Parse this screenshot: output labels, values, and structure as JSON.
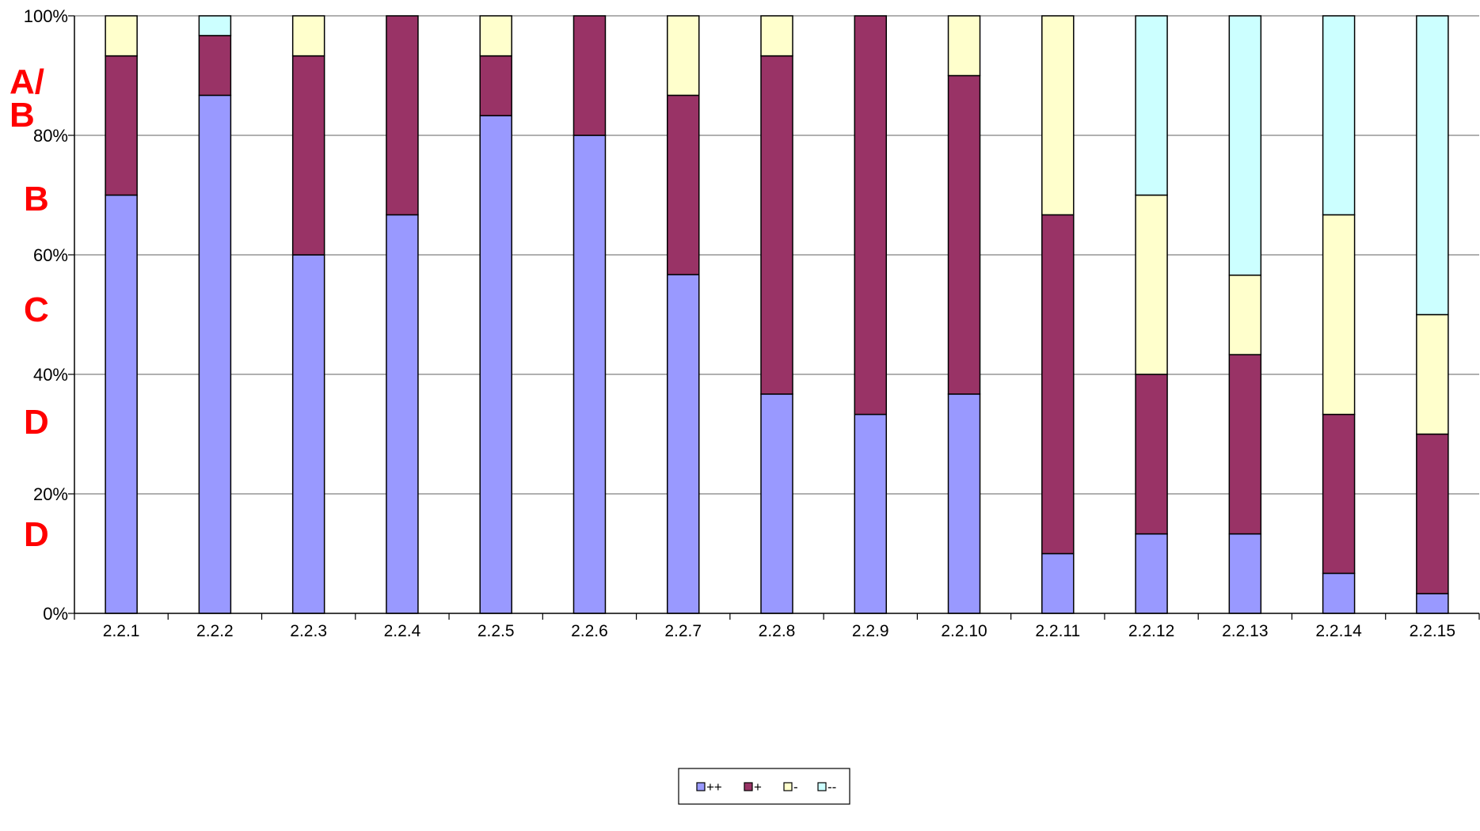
{
  "chart_data": {
    "type": "bar",
    "stacked": "percent",
    "categories": [
      "2.2.1",
      "2.2.2",
      "2.2.3",
      "2.2.4",
      "2.2.5",
      "2.2.6",
      "2.2.7",
      "2.2.8",
      "2.2.9",
      "2.2.10",
      "2.2.11",
      "2.2.12",
      "2.2.13",
      "2.2.14",
      "2.2.15"
    ],
    "series": [
      {
        "name": "++",
        "color": "#9999ff",
        "values": [
          70,
          86.7,
          60,
          66.7,
          83.3,
          80,
          56.7,
          36.7,
          33.3,
          36.7,
          10,
          13.3,
          13.3,
          6.7,
          3.3
        ]
      },
      {
        "name": "+",
        "color": "#993366",
        "values": [
          23.3,
          10,
          33.3,
          33.3,
          10,
          20,
          30,
          56.6,
          66.7,
          53.3,
          56.7,
          26.7,
          30,
          26.6,
          26.7
        ]
      },
      {
        "name": "-",
        "color": "#ffffcc",
        "values": [
          6.7,
          0,
          6.7,
          0,
          6.7,
          0,
          13.3,
          6.7,
          0,
          10,
          33.3,
          30,
          13.3,
          33.4,
          20
        ]
      },
      {
        "name": "--",
        "color": "#ccffff",
        "values": [
          0,
          3.3,
          0,
          0,
          0,
          0,
          0,
          0,
          0,
          0,
          0,
          30,
          43.4,
          33.3,
          50
        ]
      }
    ],
    "yticks": [
      "0%",
      "20%",
      "40%",
      "60%",
      "80%",
      "100%"
    ],
    "ylim": [
      0,
      100
    ],
    "grid": true,
    "legend_position": "bottom-center",
    "annotations": [
      "A/\nB",
      "B",
      "C",
      "D",
      "D"
    ],
    "annotation_color": "#ff0000"
  }
}
